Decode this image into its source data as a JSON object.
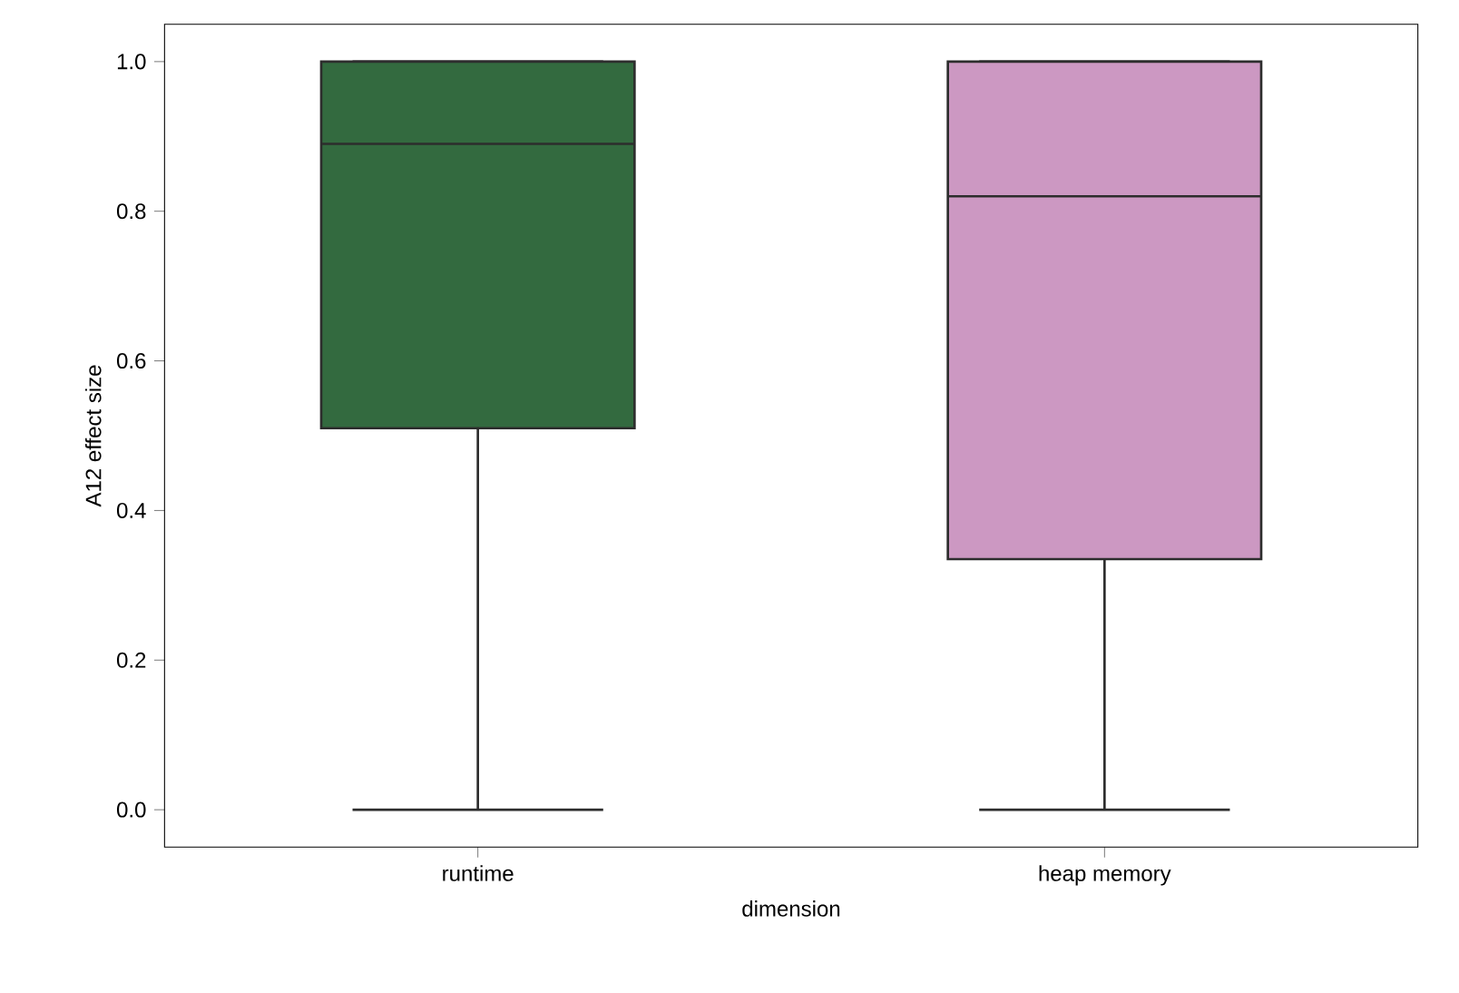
{
  "chart_data": {
    "type": "box",
    "xlabel": "dimension",
    "ylabel": "A12 effect size",
    "categories": [
      "runtime",
      "heap memory"
    ],
    "colors": [
      "#336a3f",
      "#cc98c2"
    ],
    "boxes": [
      {
        "low": 0.0,
        "q1": 0.51,
        "median": 0.89,
        "q3": 1.0,
        "high": 1.0
      },
      {
        "low": 0.0,
        "q1": 0.335,
        "median": 0.82,
        "q3": 1.0,
        "high": 1.0
      }
    ],
    "ylim": [
      -0.05,
      1.05
    ],
    "yticks": [
      {
        "value": 0,
        "label": "0.0"
      },
      {
        "value": 0.2,
        "label": "0.2"
      },
      {
        "value": 0.4,
        "label": "0.4"
      },
      {
        "value": 0.6,
        "label": "0.6"
      },
      {
        "value": 0.8,
        "label": "0.8"
      },
      {
        "value": 1,
        "label": "1.0"
      }
    ]
  }
}
